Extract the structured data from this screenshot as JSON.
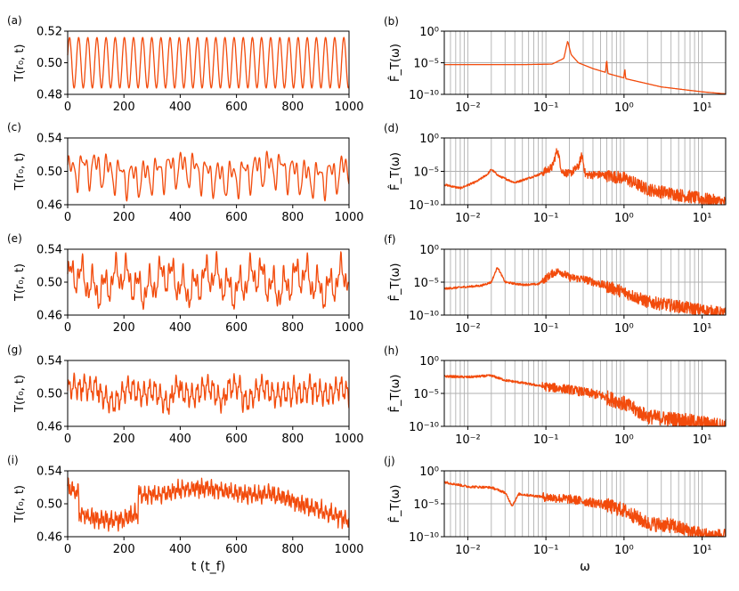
{
  "panels": [
    {
      "label": "(a)",
      "ylabel": "T(r₀, t)",
      "yticks": [
        "0.48",
        "0.50",
        "0.52"
      ]
    },
    {
      "label": "(c)",
      "ylabel": "T(r₀, t)",
      "yticks": [
        "0.46",
        "0.50",
        "0.54"
      ]
    },
    {
      "label": "(e)",
      "ylabel": "T(r₀, t)",
      "yticks": [
        "0.46",
        "0.50",
        "0.54"
      ]
    },
    {
      "label": "(g)",
      "ylabel": "T(r₀, t)",
      "yticks": [
        "0.46",
        "0.50",
        "0.54"
      ]
    },
    {
      "label": "(i)",
      "ylabel": "T(r₀, t)",
      "yticks": [
        "0.46",
        "0.50",
        "0.54"
      ]
    }
  ],
  "spectra": [
    {
      "label": "(b)",
      "ylabel": "F̂_T(ω)"
    },
    {
      "label": "(d)",
      "ylabel": "F̂_T(ω)"
    },
    {
      "label": "(f)",
      "ylabel": "F̂_T(ω)"
    },
    {
      "label": "(h)",
      "ylabel": "F̂_T(ω)"
    },
    {
      "label": "(j)",
      "ylabel": "F̂_T(ω)"
    }
  ],
  "xticks_time": [
    "0",
    "200",
    "400",
    "600",
    "800",
    "1000"
  ],
  "xticks_freq": [
    "10⁻²",
    "10⁻¹",
    "10⁰",
    "10¹"
  ],
  "yticks_spec": [
    "10⁰",
    "10⁻⁵",
    "10⁻¹⁰"
  ],
  "xlabel_time": "t (t_f)",
  "xlabel_freq": "ω",
  "colors": {
    "series": "#f24b0c",
    "grid": "#b0b0b0"
  },
  "chart_data": [
    {
      "panel": "(a)",
      "type": "line",
      "xlabel": "",
      "ylabel": "T(r₀, t)",
      "xlim": [
        0,
        1000
      ],
      "ylim": [
        0.48,
        0.52
      ],
      "x": [
        0,
        1000
      ],
      "series": [
        {
          "kind": "periodic",
          "mean": 0.5,
          "amplitude": 0.016,
          "period_t": 32.5
        }
      ]
    },
    {
      "panel": "(b)",
      "type": "line",
      "xscale": "log",
      "yscale": "log",
      "xlim": [
        0.005,
        20
      ],
      "ylim": [
        1e-10,
        1
      ],
      "series": [
        {
          "omega": [
            0.005,
            0.05,
            0.12,
            0.17,
            0.19,
            0.21,
            0.26,
            0.4,
            0.58,
            0.6,
            0.62,
            1.0,
            1.02,
            1.05,
            3,
            10,
            20
          ],
          "F": [
            5e-06,
            5e-06,
            6e-06,
            5e-05,
            0.03,
            0.0002,
            1e-05,
            1.2e-06,
            3e-07,
            5e-05,
            2e-07,
            4e-08,
            2e-06,
            3e-08,
            1.5e-09,
            2.5e-10,
            1.2e-10
          ]
        }
      ]
    },
    {
      "panel": "(c)",
      "type": "line",
      "ylabel": "T(r₀, t)",
      "xlim": [
        0,
        1000
      ],
      "ylim": [
        0.46,
        0.54
      ],
      "series": [
        {
          "kind": "quasi-periodic",
          "mean": 0.5,
          "range": [
            0.463,
            0.533
          ]
        }
      ]
    },
    {
      "panel": "(d)",
      "type": "line",
      "xscale": "log",
      "yscale": "log",
      "xlim": [
        0.005,
        20
      ],
      "ylim": [
        1e-10,
        1
      ],
      "series": [
        {
          "omega": [
            0.005,
            0.008,
            0.013,
            0.018,
            0.02,
            0.025,
            0.04,
            0.08,
            0.12,
            0.14,
            0.16,
            0.2,
            0.26,
            0.29,
            0.32,
            0.5,
            1.0,
            2.0,
            5.0,
            20
          ],
          "F": [
            1e-07,
            3e-08,
            3e-07,
            4e-06,
            2e-05,
            2e-06,
            2e-07,
            3e-06,
            4e-05,
            0.02,
            1e-05,
            4e-06,
            5e-05,
            0.003,
            3e-06,
            3e-06,
            1e-06,
            2e-08,
            3e-09,
            2e-10
          ]
        }
      ]
    },
    {
      "panel": "(e)",
      "type": "line",
      "ylabel": "T(r₀, t)",
      "xlim": [
        0,
        1000
      ],
      "ylim": [
        0.46,
        0.54
      ],
      "series": [
        {
          "kind": "quasi-periodic",
          "mean": 0.5,
          "range": [
            0.46,
            0.54
          ]
        }
      ]
    },
    {
      "panel": "(f)",
      "type": "line",
      "xscale": "log",
      "yscale": "log",
      "xlim": [
        0.005,
        20
      ],
      "ylim": [
        1e-10,
        1
      ],
      "series": [
        {
          "omega": [
            0.005,
            0.015,
            0.02,
            0.024,
            0.03,
            0.05,
            0.08,
            0.12,
            0.15,
            0.2,
            0.3,
            0.5,
            1.0,
            2.0,
            5.0,
            20
          ],
          "F": [
            1e-06,
            3e-06,
            1e-05,
            0.002,
            1e-05,
            4e-06,
            5e-06,
            0.0002,
            0.0005,
            5e-05,
            3e-05,
            5e-06,
            3e-07,
            1e-08,
            2e-09,
            1.5e-10
          ]
        }
      ]
    },
    {
      "panel": "(g)",
      "type": "line",
      "ylabel": "T(r₀, t)",
      "xlim": [
        0,
        1000
      ],
      "ylim": [
        0.46,
        0.54
      ],
      "series": [
        {
          "kind": "chaotic",
          "mean": 0.5,
          "range": [
            0.462,
            0.528
          ]
        }
      ]
    },
    {
      "panel": "(h)",
      "type": "line",
      "xscale": "log",
      "yscale": "log",
      "xlim": [
        0.005,
        20
      ],
      "ylim": [
        1e-10,
        1
      ],
      "series": [
        {
          "omega": [
            0.005,
            0.01,
            0.02,
            0.03,
            0.05,
            0.1,
            0.2,
            0.5,
            1.0,
            2.0,
            5.0,
            20
          ],
          "F": [
            0.004,
            0.003,
            0.005,
            0.001,
            0.0004,
            0.0001,
            4e-05,
            5e-06,
            3e-07,
            3e-09,
            1e-09,
            1e-10
          ]
        }
      ]
    },
    {
      "panel": "(i)",
      "type": "line",
      "xlabel": "t (t_f)",
      "ylabel": "T(r₀, t)",
      "xlim": [
        0,
        1000
      ],
      "ylim": [
        0.46,
        0.54
      ],
      "series": [
        {
          "kind": "chaotic",
          "mean": 0.505,
          "range": [
            0.465,
            0.537
          ]
        }
      ]
    },
    {
      "panel": "(j)",
      "type": "line",
      "xscale": "log",
      "yscale": "log",
      "xlabel": "ω",
      "xlim": [
        0.005,
        20
      ],
      "ylim": [
        1e-10,
        1
      ],
      "series": [
        {
          "omega": [
            0.005,
            0.01,
            0.02,
            0.03,
            0.037,
            0.045,
            0.06,
            0.1,
            0.2,
            0.5,
            1.0,
            2.0,
            4.0,
            10,
            20
          ],
          "F": [
            0.02,
            0.004,
            0.003,
            0.0005,
            5e-06,
            0.0003,
            0.0002,
            0.0001,
            5e-05,
            1e-05,
            1e-06,
            1e-08,
            5e-09,
            2e-10,
            1e-10
          ]
        }
      ]
    }
  ]
}
